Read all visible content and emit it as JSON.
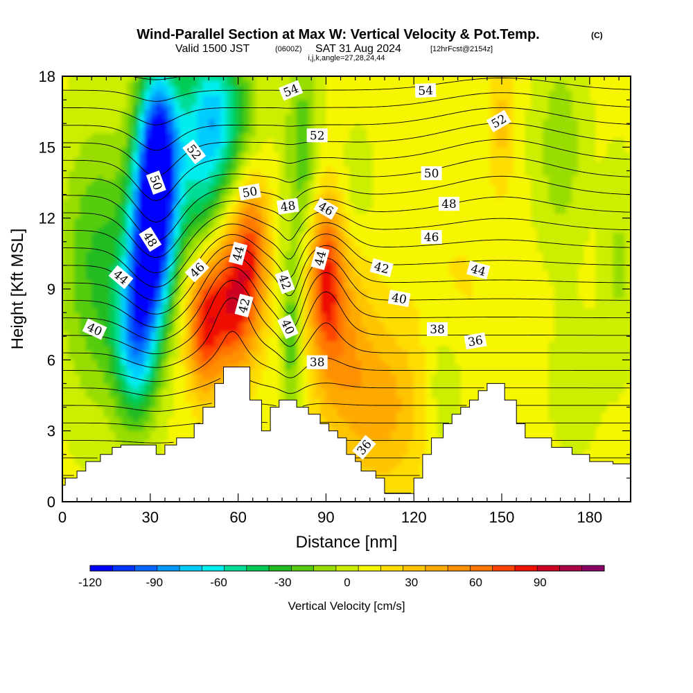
{
  "title": {
    "main": "Wind-Parallel Section at Max W: Vertical Velocity & Pot.Temp.",
    "main_tag": "(C)",
    "valid_prefix": "Valid 1500 JST",
    "valid_zulu": "(0600Z)",
    "valid_date": "SAT 31 Aug 2024",
    "forecast": "[12hrFcst@2154z]",
    "indices": "i,j,k,angle=27,28,24,44"
  },
  "chart_data": {
    "type": "heatmap",
    "xlabel": "Distance [nm]",
    "ylabel": "Height [Kft MSL]",
    "xlim": [
      0,
      194
    ],
    "ylim": [
      0,
      18
    ],
    "x_ticks": [
      0,
      30,
      60,
      90,
      120,
      150,
      180
    ],
    "y_ticks": [
      0,
      3,
      6,
      9,
      12,
      15,
      18
    ],
    "colorbar": {
      "label": "Vertical Velocity [cm/s]",
      "min": -120,
      "max": 110,
      "step": 10,
      "tick_values": [
        -120,
        -90,
        -60,
        -30,
        0,
        30,
        60,
        90
      ],
      "tick_labels": [
        "-120",
        "-90",
        "-60",
        "-30",
        "0",
        "30",
        "60",
        "90"
      ],
      "colors": [
        "#0000ff",
        "#0033ff",
        "#0066ff",
        "#0099ff",
        "#00ccff",
        "#00eeee",
        "#00dd99",
        "#00cc55",
        "#22bb22",
        "#55cc11",
        "#99dd00",
        "#ccee00",
        "#f6f600",
        "#ffdd00",
        "#ffc400",
        "#ffaa00",
        "#ff9000",
        "#ff7700",
        "#ff4400",
        "#ee1100",
        "#cc0022",
        "#aa0044",
        "#880066"
      ]
    },
    "vertical_velocity_features": [
      {
        "x": 33,
        "y": 14.5,
        "value": -115,
        "sx": 5,
        "sy": 3
      },
      {
        "x": 30,
        "y": 11,
        "value": -95,
        "sx": 5,
        "sy": 2.8
      },
      {
        "x": 25,
        "y": 7,
        "value": -75,
        "sx": 5,
        "sy": 2.5
      },
      {
        "x": 52,
        "y": 16.5,
        "value": -70,
        "sx": 8,
        "sy": 2.2
      },
      {
        "x": 12,
        "y": 10,
        "value": -35,
        "sx": 9,
        "sy": 4
      },
      {
        "x": 47,
        "y": 13,
        "value": -40,
        "sx": 6,
        "sy": 2.5
      },
      {
        "x": 82,
        "y": 15,
        "value": -30,
        "sx": 4,
        "sy": 3
      },
      {
        "x": 78,
        "y": 7,
        "value": -30,
        "sx": 2.5,
        "sy": 2.5
      },
      {
        "x": 100,
        "y": 13,
        "value": -10,
        "sx": 5,
        "sy": 2
      },
      {
        "x": 170,
        "y": 15,
        "value": -20,
        "sx": 6,
        "sy": 3
      },
      {
        "x": 190,
        "y": 10,
        "value": -15,
        "sx": 4,
        "sy": 3
      },
      {
        "x": 130,
        "y": 5,
        "value": -15,
        "sx": 5,
        "sy": 2
      },
      {
        "x": 175,
        "y": 5,
        "value": -10,
        "sx": 6,
        "sy": 2
      },
      {
        "x": 58,
        "y": 8.5,
        "value": 75,
        "sx": 6,
        "sy": 2.2
      },
      {
        "x": 48,
        "y": 7.5,
        "value": 60,
        "sx": 4,
        "sy": 2
      },
      {
        "x": 65,
        "y": 11,
        "value": 45,
        "sx": 4,
        "sy": 2
      },
      {
        "x": 90,
        "y": 9.5,
        "value": 60,
        "sx": 4,
        "sy": 2.5
      },
      {
        "x": 96,
        "y": 7,
        "value": 30,
        "sx": 7,
        "sy": 3
      },
      {
        "x": 110,
        "y": 4,
        "value": 30,
        "sx": 10,
        "sy": 2.5
      },
      {
        "x": 150,
        "y": 16,
        "value": 20,
        "sx": 3,
        "sy": 2
      },
      {
        "x": 135,
        "y": 9,
        "value": 8,
        "sx": 12,
        "sy": 3
      }
    ],
    "theta_contours": {
      "interval": 1,
      "levels": [
        30,
        60
      ],
      "labeled": [
        {
          "x": 78,
          "y": 17.4,
          "label": "54",
          "angle": -22
        },
        {
          "x": 124,
          "y": 17.4,
          "label": "54",
          "angle": -2
        },
        {
          "x": 87,
          "y": 15.5,
          "label": "52",
          "angle": 0
        },
        {
          "x": 45,
          "y": 14.8,
          "label": "52",
          "angle": 52
        },
        {
          "x": 149,
          "y": 16.1,
          "label": "52",
          "angle": -30
        },
        {
          "x": 32,
          "y": 13.5,
          "label": "50",
          "angle": 70
        },
        {
          "x": 64,
          "y": 13.1,
          "label": "50",
          "angle": -10
        },
        {
          "x": 126,
          "y": 13.9,
          "label": "50",
          "angle": 0
        },
        {
          "x": 77,
          "y": 12.5,
          "label": "48",
          "angle": -8
        },
        {
          "x": 30,
          "y": 11.1,
          "label": "48",
          "angle": 58
        },
        {
          "x": 132,
          "y": 12.6,
          "label": "48",
          "angle": 0
        },
        {
          "x": 90,
          "y": 12.4,
          "label": "46",
          "angle": 30
        },
        {
          "x": 46,
          "y": 9.8,
          "label": "46",
          "angle": -45
        },
        {
          "x": 126,
          "y": 11.2,
          "label": "46",
          "angle": 0
        },
        {
          "x": 60,
          "y": 10.5,
          "label": "44",
          "angle": -75
        },
        {
          "x": 88,
          "y": 10.3,
          "label": "44",
          "angle": -75
        },
        {
          "x": 20,
          "y": 9.5,
          "label": "44",
          "angle": 40
        },
        {
          "x": 142,
          "y": 9.8,
          "label": "44",
          "angle": 15
        },
        {
          "x": 62,
          "y": 8.3,
          "label": "42",
          "angle": -75
        },
        {
          "x": 76,
          "y": 9.3,
          "label": "42",
          "angle": 70
        },
        {
          "x": 109,
          "y": 9.9,
          "label": "42",
          "angle": 15
        },
        {
          "x": 77,
          "y": 7.4,
          "label": "40",
          "angle": 65
        },
        {
          "x": 11,
          "y": 7.3,
          "label": "40",
          "angle": 25
        },
        {
          "x": 115,
          "y": 8.6,
          "label": "40",
          "angle": 10
        },
        {
          "x": 87,
          "y": 5.9,
          "label": "38",
          "angle": 0
        },
        {
          "x": 128,
          "y": 7.3,
          "label": "38",
          "angle": 0
        },
        {
          "x": 141,
          "y": 6.8,
          "label": "36",
          "angle": -10
        },
        {
          "x": 103,
          "y": 2.3,
          "label": "36",
          "angle": -50
        }
      ]
    },
    "terrain": [
      [
        0,
        0.7
      ],
      [
        1,
        0.7
      ],
      [
        1,
        1.0
      ],
      [
        5,
        1.0
      ],
      [
        5,
        1.3
      ],
      [
        8,
        1.3
      ],
      [
        8,
        1.7
      ],
      [
        13,
        1.7
      ],
      [
        13,
        2.0
      ],
      [
        17,
        2.0
      ],
      [
        17,
        2.3
      ],
      [
        20,
        2.3
      ],
      [
        20,
        2.4
      ],
      [
        32,
        2.4
      ],
      [
        32,
        2.0
      ],
      [
        35,
        2.0
      ],
      [
        35,
        2.4
      ],
      [
        39,
        2.4
      ],
      [
        39,
        2.7
      ],
      [
        45,
        2.7
      ],
      [
        45,
        3.3
      ],
      [
        48,
        3.3
      ],
      [
        48,
        4.0
      ],
      [
        52,
        4.0
      ],
      [
        52,
        5.0
      ],
      [
        55,
        5.0
      ],
      [
        55,
        5.7
      ],
      [
        64,
        5.7
      ],
      [
        64,
        4.3
      ],
      [
        68,
        4.3
      ],
      [
        68,
        3.0
      ],
      [
        71,
        3.0
      ],
      [
        71,
        4.0
      ],
      [
        74,
        4.0
      ],
      [
        74,
        4.3
      ],
      [
        80,
        4.3
      ],
      [
        80,
        4.0
      ],
      [
        84,
        4.0
      ],
      [
        84,
        3.7
      ],
      [
        88,
        3.7
      ],
      [
        88,
        3.3
      ],
      [
        91,
        3.3
      ],
      [
        91,
        3.0
      ],
      [
        94,
        3.0
      ],
      [
        94,
        2.7
      ],
      [
        97,
        2.7
      ],
      [
        97,
        2.0
      ],
      [
        100,
        2.0
      ],
      [
        100,
        1.7
      ],
      [
        102,
        1.7
      ],
      [
        102,
        1.3
      ],
      [
        107,
        1.3
      ],
      [
        107,
        1.0
      ],
      [
        110,
        1.0
      ],
      [
        110,
        0.35
      ],
      [
        120,
        0.35
      ],
      [
        120,
        1.0
      ],
      [
        123,
        1.0
      ],
      [
        123,
        2.0
      ],
      [
        126,
        2.0
      ],
      [
        126,
        2.7
      ],
      [
        130,
        2.7
      ],
      [
        130,
        3.3
      ],
      [
        133,
        3.3
      ],
      [
        133,
        3.7
      ],
      [
        136,
        3.7
      ],
      [
        136,
        4.0
      ],
      [
        139,
        4.0
      ],
      [
        139,
        4.3
      ],
      [
        142,
        4.3
      ],
      [
        142,
        4.7
      ],
      [
        145,
        4.7
      ],
      [
        145,
        5.0
      ],
      [
        151,
        5.0
      ],
      [
        151,
        4.3
      ],
      [
        155,
        4.3
      ],
      [
        155,
        3.3
      ],
      [
        158,
        3.3
      ],
      [
        158,
        2.7
      ],
      [
        167,
        2.7
      ],
      [
        167,
        2.3
      ],
      [
        174,
        2.3
      ],
      [
        174,
        2.0
      ],
      [
        180,
        2.0
      ],
      [
        180,
        1.7
      ],
      [
        188,
        1.7
      ],
      [
        188,
        1.6
      ],
      [
        194,
        1.6
      ]
    ]
  }
}
